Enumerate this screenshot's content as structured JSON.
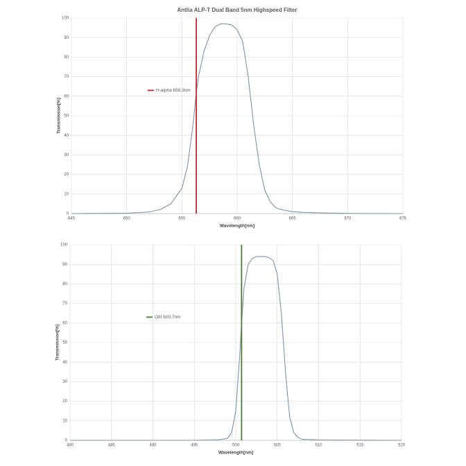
{
  "chart_data": [
    {
      "type": "line",
      "title": "Antlia ALP-T Dual Band 5nm Highspeed Filter",
      "x_label": "Wavelength[nm]",
      "y_label": "Transmission[%]",
      "xlim": [
        645,
        675
      ],
      "ylim": [
        0,
        100
      ],
      "xticks": [
        645,
        650,
        655,
        660,
        665,
        670,
        675
      ],
      "yticks": [
        0,
        10,
        20,
        30,
        40,
        50,
        60,
        70,
        80,
        90,
        100
      ],
      "grid": true,
      "legend": "center left",
      "series": [
        {
          "color": "#7f93a3",
          "x": [
            645,
            650,
            652,
            653,
            654,
            655,
            655.5,
            656,
            656.3,
            656.5,
            657,
            657.5,
            658,
            658.5,
            659,
            659.5,
            660,
            660.5,
            661,
            661.5,
            662,
            662.5,
            663,
            663.5,
            664,
            665,
            666,
            668,
            670,
            675
          ],
          "values": [
            0,
            0.2,
            0.8,
            2,
            5,
            13,
            24,
            45,
            62,
            70,
            83,
            91,
            95.5,
            97,
            97,
            96.5,
            94,
            88,
            70,
            45,
            25,
            12,
            6,
            3,
            2,
            1,
            0.6,
            0.3,
            0.1,
            0
          ]
        },
        {
          "name": "H-alpha 656.3nm",
          "color": "#c0272d",
          "x": [
            656.3,
            656.3
          ],
          "values": [
            0,
            100
          ]
        }
      ]
    },
    {
      "type": "line",
      "x_label": "Wavelength[nm]",
      "y_label": "Transmission[%]",
      "xlim": [
        480,
        520
      ],
      "ylim": [
        0,
        100
      ],
      "xticks": [
        480,
        485,
        490,
        495,
        500,
        505,
        510,
        515,
        520
      ],
      "yticks": [
        0,
        10,
        20,
        30,
        40,
        50,
        60,
        70,
        80,
        90,
        100
      ],
      "grid": true,
      "legend": "center left",
      "series": [
        {
          "color": "#7f93a3",
          "x": [
            480,
            495,
            498,
            499,
            499.5,
            500,
            500.5,
            500.7,
            501,
            501.5,
            502,
            502.5,
            503,
            503.5,
            504,
            504.5,
            505,
            505.5,
            506,
            506.5,
            507,
            507.5,
            508,
            510,
            520
          ],
          "values": [
            0,
            0,
            0.3,
            1,
            4,
            15,
            45,
            60,
            78,
            90,
            93,
            94,
            94,
            94,
            93.5,
            92,
            85,
            65,
            35,
            12,
            4,
            1.5,
            0.5,
            0.2,
            0
          ]
        },
        {
          "name": "OIII 500.7nm",
          "color": "#4e7a3a",
          "x": [
            500.7,
            500.7
          ],
          "values": [
            0,
            100
          ]
        }
      ]
    }
  ]
}
